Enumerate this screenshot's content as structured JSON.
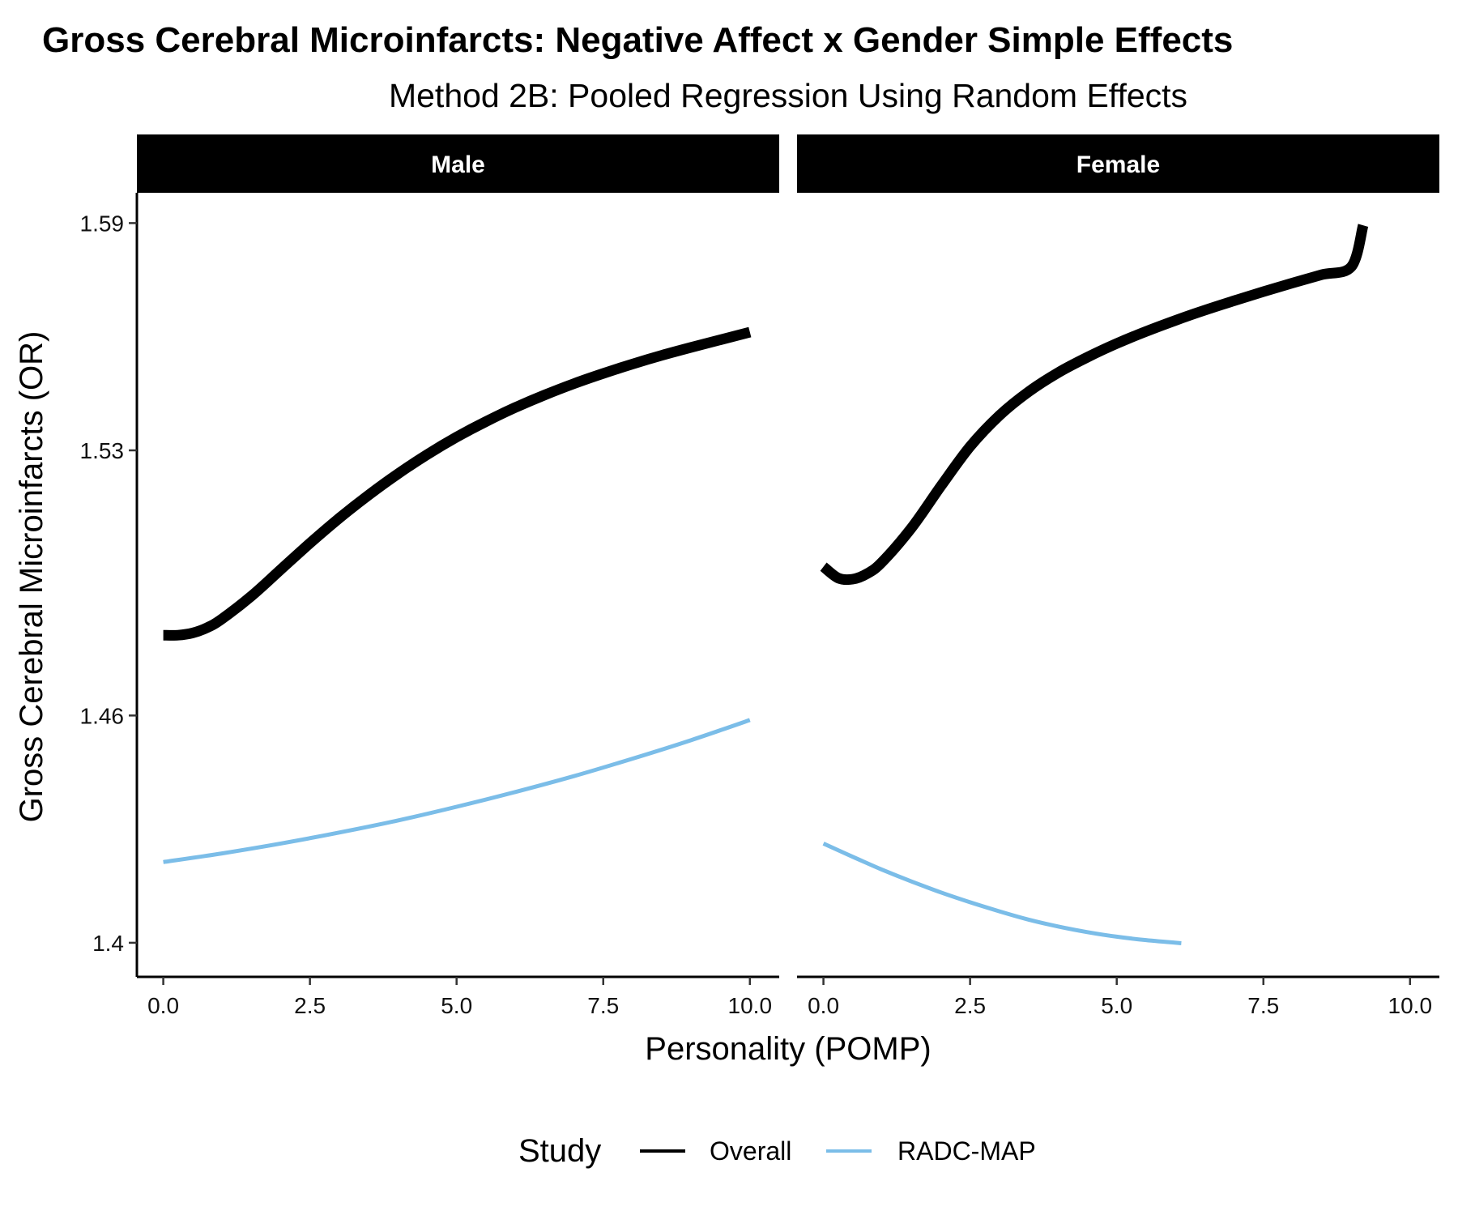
{
  "chart_data": {
    "type": "line",
    "title": "Gross Cerebral Microinfarcts: Negative Affect x Gender Simple Effects",
    "subtitle": "Method 2B: Pooled Regression Using Random Effects",
    "xlabel": "Personality (POMP)",
    "ylabel": "Gross Cerebral Microinfarcts (OR)",
    "xlim": [
      -0.45,
      10.5
    ],
    "ylim": [
      1.391,
      1.598
    ],
    "x_ticks": [
      0,
      2.5,
      5,
      7.5,
      10
    ],
    "x_tick_labels": [
      "0.0",
      "2.5",
      "5.0",
      "7.5",
      "10.0"
    ],
    "y_ticks": [
      1.4,
      1.46,
      1.53,
      1.59
    ],
    "y_tick_labels": [
      "1.4",
      "1.46",
      "1.53",
      "1.59"
    ],
    "grid": false,
    "legend": {
      "title": "Study",
      "position": "bottom",
      "entries": [
        {
          "label": "Overall",
          "color": "#000000"
        },
        {
          "label": "RADC-MAP",
          "color": "#7bbde8"
        }
      ]
    },
    "panels": [
      {
        "name": "Male",
        "series": [
          {
            "name": "Overall",
            "color": "#000000",
            "x": [
              0,
              0.25,
              0.5,
              0.75,
              1.0,
              1.5,
              2.0,
              2.5,
              3.0,
              3.5,
              4.0,
              4.5,
              5.0,
              5.5,
              6.0,
              6.5,
              7.0,
              7.5,
              8.0,
              8.5,
              9.0,
              9.5,
              10.0
            ],
            "y": [
              1.4812,
              1.4812,
              1.4818,
              1.4832,
              1.4855,
              1.4915,
              1.4985,
              1.5055,
              1.5121,
              1.5182,
              1.5238,
              1.5289,
              1.5335,
              1.5376,
              1.5413,
              1.5446,
              1.5476,
              1.5503,
              1.5528,
              1.5551,
              1.5572,
              1.5592,
              1.5612
            ]
          },
          {
            "name": "RADC-MAP",
            "color": "#7bbde8",
            "x": [
              0,
              1,
              2,
              3,
              4,
              5,
              6,
              7,
              8,
              9,
              10
            ],
            "y": [
              1.4213,
              1.4236,
              1.4262,
              1.4291,
              1.4323,
              1.4359,
              1.4398,
              1.444,
              1.4486,
              1.4535,
              1.4588
            ]
          }
        ]
      },
      {
        "name": "Female",
        "series": [
          {
            "name": "Overall",
            "color": "#000000",
            "x": [
              0,
              0.25,
              0.5,
              0.75,
              1.0,
              1.5,
              2.0,
              2.5,
              3.0,
              3.5,
              4.0,
              4.5,
              5.0,
              5.5,
              6.0,
              6.5,
              7.0,
              7.5,
              8.0,
              8.5,
              9.0,
              9.2
            ],
            "y": [
              1.4993,
              1.4963,
              1.496,
              1.4975,
              1.5005,
              1.5095,
              1.5205,
              1.531,
              1.5392,
              1.5455,
              1.5505,
              1.5546,
              1.5582,
              1.5614,
              1.5643,
              1.567,
              1.5695,
              1.5719,
              1.5742,
              1.5764,
              1.5785,
              1.5894
            ]
          },
          {
            "name": "RADC-MAP",
            "color": "#7bbde8",
            "x": [
              0,
              0.5,
              1,
              1.5,
              2,
              2.5,
              3,
              3.5,
              4,
              4.5,
              5,
              5.5,
              6.1
            ],
            "y": [
              1.4262,
              1.4227,
              1.4193,
              1.4162,
              1.4133,
              1.4107,
              1.4083,
              1.4061,
              1.4043,
              1.4028,
              1.4016,
              1.4007,
              1.3999
            ]
          }
        ]
      }
    ]
  }
}
